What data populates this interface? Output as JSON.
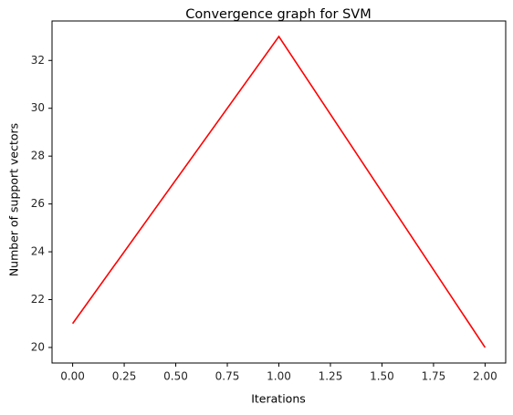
{
  "chart_data": {
    "type": "line",
    "title": "Convergence graph for SVM",
    "xlabel": "Iterations",
    "ylabel": "Number of support vectors",
    "xlim": [
      -0.1,
      2.1
    ],
    "ylim": [
      19.35,
      33.65
    ],
    "x": [
      0,
      1,
      2
    ],
    "series": [
      {
        "values": [
          21,
          33,
          20
        ],
        "color": "#ff0000"
      }
    ],
    "xticks": [
      0.0,
      0.25,
      0.5,
      0.75,
      1.0,
      1.25,
      1.5,
      1.75,
      2.0
    ],
    "xtick_labels": [
      "0.00",
      "0.25",
      "0.50",
      "0.75",
      "1.00",
      "1.25",
      "1.50",
      "1.75",
      "2.00"
    ],
    "yticks": [
      20,
      22,
      24,
      26,
      28,
      30,
      32
    ],
    "ytick_labels": [
      "20",
      "22",
      "24",
      "26",
      "28",
      "30",
      "32"
    ],
    "grid": false,
    "legend": "none"
  }
}
